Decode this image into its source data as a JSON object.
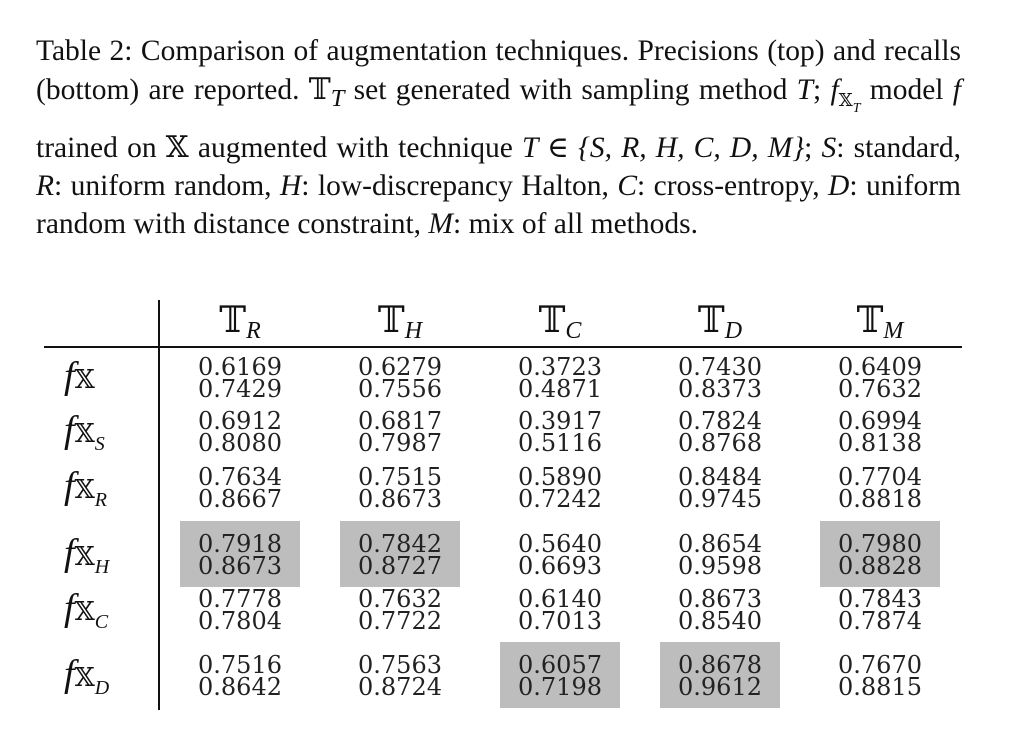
{
  "caption": {
    "p1": "Table 2: Comparison of augmentation techniques. Precisions (top) and recalls (bottom) are reported. ",
    "tset": "T",
    "tsub": "T",
    "p2": " set generated with sampling method ",
    "T": "T",
    "p3": "; ",
    "f": "f",
    "xsub": "X",
    "tsub2": "T",
    "p4": " model ",
    "f2": "f",
    "p5": " trained on ",
    "X": "X",
    "p6": " augmented with technique ",
    "expr": "T ∈ {S, R, H, C, D, M}",
    "p7": "; ",
    "S": "S",
    "p8": ": standard, ",
    "R": "R",
    "p9": ": uniform random, ",
    "H": "H",
    "p10": ": low-discrepancy Halton, ",
    "C": "C",
    "p11": ": cross-entropy, ",
    "D": "D",
    "p12": ": uniform random with distance constraint, ",
    "M": "M",
    "p13": ": mix of all methods."
  },
  "table": {
    "columns": [
      {
        "sym": "T",
        "sub": "R"
      },
      {
        "sym": "T",
        "sub": "H"
      },
      {
        "sym": "T",
        "sub": "C"
      },
      {
        "sym": "T",
        "sub": "D"
      },
      {
        "sym": "T",
        "sub": "M"
      }
    ],
    "rows": [
      {
        "f": "f",
        "x": "X",
        "sub": "",
        "cells": [
          [
            "0.6169",
            "0.7429"
          ],
          [
            "0.6279",
            "0.7556"
          ],
          [
            "0.3723",
            "0.4871"
          ],
          [
            "0.7430",
            "0.8373"
          ],
          [
            "0.6409",
            "0.7632"
          ]
        ],
        "highlight": [
          false,
          false,
          false,
          false,
          false
        ]
      },
      {
        "f": "f",
        "x": "X",
        "sub": "S",
        "cells": [
          [
            "0.6912",
            "0.8080"
          ],
          [
            "0.6817",
            "0.7987"
          ],
          [
            "0.3917",
            "0.5116"
          ],
          [
            "0.7824",
            "0.8768"
          ],
          [
            "0.6994",
            "0.8138"
          ]
        ],
        "highlight": [
          false,
          false,
          false,
          false,
          false
        ]
      },
      {
        "f": "f",
        "x": "X",
        "sub": "R",
        "cells": [
          [
            "0.7634",
            "0.8667"
          ],
          [
            "0.7515",
            "0.8673"
          ],
          [
            "0.5890",
            "0.7242"
          ],
          [
            "0.8484",
            "0.9745"
          ],
          [
            "0.7704",
            "0.8818"
          ]
        ],
        "highlight": [
          false,
          false,
          false,
          false,
          false
        ]
      },
      {
        "f": "f",
        "x": "X",
        "sub": "H",
        "cells": [
          [
            "0.7918",
            "0.8673"
          ],
          [
            "0.7842",
            "0.8727"
          ],
          [
            "0.5640",
            "0.6693"
          ],
          [
            "0.8654",
            "0.9598"
          ],
          [
            "0.7980",
            "0.8828"
          ]
        ],
        "highlight": [
          true,
          true,
          false,
          false,
          true
        ]
      },
      {
        "f": "f",
        "x": "X",
        "sub": "C",
        "cells": [
          [
            "0.7778",
            "0.7804"
          ],
          [
            "0.7632",
            "0.7722"
          ],
          [
            "0.6140",
            "0.7013"
          ],
          [
            "0.8673",
            "0.8540"
          ],
          [
            "0.7843",
            "0.7874"
          ]
        ],
        "highlight": [
          false,
          false,
          false,
          false,
          false
        ]
      },
      {
        "f": "f",
        "x": "X",
        "sub": "D",
        "cells": [
          [
            "0.7516",
            "0.8642"
          ],
          [
            "0.7563",
            "0.8724"
          ],
          [
            "0.6057",
            "0.7198"
          ],
          [
            "0.8678",
            "0.9612"
          ],
          [
            "0.7670",
            "0.8815"
          ]
        ],
        "highlight": [
          false,
          false,
          true,
          true,
          false
        ]
      }
    ],
    "highlight_color": "#bdbdbd"
  }
}
